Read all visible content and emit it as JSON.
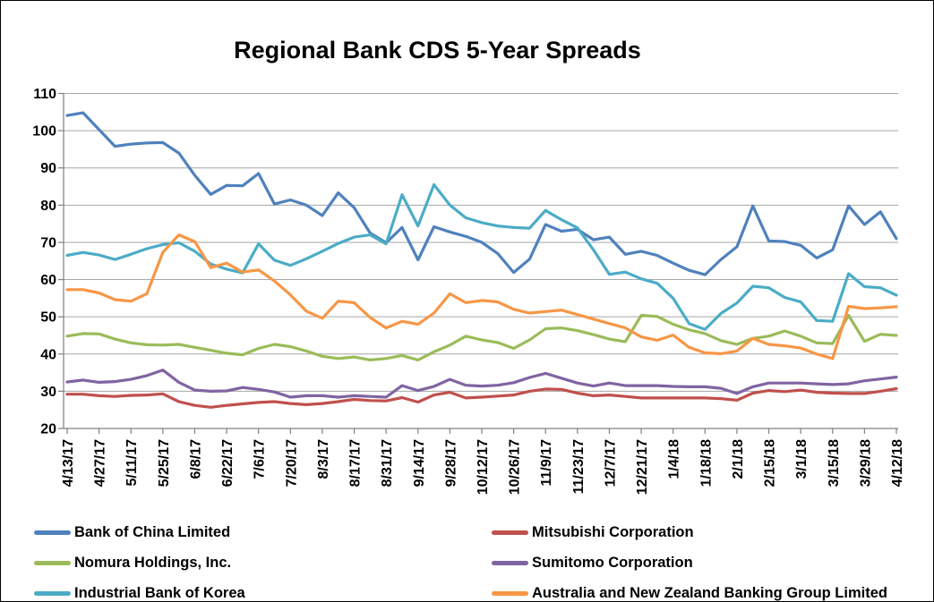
{
  "chart_data": {
    "type": "line",
    "title": "Regional Bank CDS 5-Year Spreads",
    "xlabel": "",
    "ylabel": "",
    "ylim": [
      20,
      110
    ],
    "y_ticks": [
      20,
      30,
      40,
      50,
      60,
      70,
      80,
      90,
      100,
      110
    ],
    "grid": true,
    "legend_position": "bottom-two-columns",
    "x_tick_labels": [
      "4/13/17",
      "4/27/17",
      "5/11/17",
      "5/25/17",
      "6/8/17",
      "6/22/17",
      "7/6/17",
      "7/20/17",
      "8/3/17",
      "8/17/17",
      "8/31/17",
      "9/14/17",
      "9/28/17",
      "10/12/17",
      "10/26/17",
      "11/9/17",
      "11/23/17",
      "12/7/17",
      "12/21/17",
      "1/4/18",
      "1/18/18",
      "2/1/18",
      "2/15/18",
      "3/1/18",
      "3/15/18",
      "3/29/18",
      "4/12/18"
    ],
    "x": [
      "4/13/17",
      "4/20/17",
      "4/27/17",
      "5/4/17",
      "5/11/17",
      "5/18/17",
      "5/25/17",
      "6/1/17",
      "6/8/17",
      "6/15/17",
      "6/22/17",
      "6/29/17",
      "7/6/17",
      "7/13/17",
      "7/20/17",
      "7/27/17",
      "8/3/17",
      "8/10/17",
      "8/17/17",
      "8/24/17",
      "8/31/17",
      "9/7/17",
      "9/14/17",
      "9/21/17",
      "9/28/17",
      "10/5/17",
      "10/12/17",
      "10/19/17",
      "10/26/17",
      "11/2/17",
      "11/9/17",
      "11/16/17",
      "11/23/17",
      "11/30/17",
      "12/7/17",
      "12/14/17",
      "12/21/17",
      "12/28/17",
      "1/4/18",
      "1/11/18",
      "1/18/18",
      "1/25/18",
      "2/1/18",
      "2/8/18",
      "2/15/18",
      "2/22/18",
      "3/1/18",
      "3/8/18",
      "3/15/18",
      "3/22/18",
      "3/29/18",
      "4/5/18",
      "4/12/18"
    ],
    "series": [
      {
        "name": "Bank of China Limited",
        "color": "#4F81BD",
        "values": [
          104.1,
          104.8,
          100.3,
          95.8,
          96.4,
          96.7,
          96.8,
          94.0,
          88.0,
          82.9,
          85.3,
          85.2,
          88.5,
          80.3,
          81.4,
          80.0,
          77.2,
          83.3,
          79.3,
          72.5,
          69.9,
          74.0,
          65.3,
          74.2,
          72.8,
          71.6,
          70.0,
          67.0,
          61.9,
          65.5,
          74.8,
          73.0,
          73.5,
          70.7,
          71.4,
          66.8,
          67.6,
          66.5,
          64.4,
          62.5,
          61.3,
          65.4,
          68.8,
          79.8,
          70.4,
          70.2,
          69.2,
          65.8,
          68.0,
          79.8,
          74.8,
          78.2,
          71.0
        ]
      },
      {
        "name": "Mitsubishi Corporation",
        "color": "#C0504D",
        "values": [
          29.2,
          29.2,
          28.8,
          28.6,
          28.9,
          29.0,
          29.3,
          27.2,
          26.2,
          25.7,
          26.2,
          26.6,
          27.0,
          27.2,
          26.7,
          26.4,
          26.7,
          27.2,
          27.8,
          27.5,
          27.4,
          28.3,
          27.1,
          29.0,
          29.7,
          28.2,
          28.4,
          28.7,
          29.0,
          30.0,
          30.6,
          30.5,
          29.5,
          28.8,
          29.0,
          28.6,
          28.2,
          28.2,
          28.2,
          28.2,
          28.2,
          28.0,
          27.6,
          29.5,
          30.2,
          29.9,
          30.3,
          29.7,
          29.5,
          29.4,
          29.4,
          30.0,
          30.7
        ]
      },
      {
        "name": "Nomura Holdings, Inc.",
        "color": "#9BBB59",
        "values": [
          44.8,
          45.5,
          45.4,
          44.0,
          43.0,
          42.5,
          42.4,
          42.6,
          41.8,
          41.0,
          40.2,
          39.8,
          41.5,
          42.6,
          42.0,
          40.8,
          39.4,
          38.8,
          39.2,
          38.4,
          38.8,
          39.6,
          38.4,
          40.6,
          42.4,
          44.8,
          43.8,
          43.1,
          41.5,
          43.8,
          46.8,
          47.0,
          46.3,
          45.2,
          44.0,
          43.3,
          50.4,
          50.1,
          48.0,
          46.5,
          45.5,
          43.6,
          42.6,
          44.2,
          44.8,
          46.2,
          44.8,
          43.0,
          42.8,
          50.4,
          43.4,
          45.3,
          45.0
        ]
      },
      {
        "name": "Sumitomo Corporation",
        "color": "#8064A2",
        "values": [
          32.5,
          33.0,
          32.4,
          32.6,
          33.2,
          34.2,
          35.7,
          32.4,
          30.3,
          30.0,
          30.1,
          31.0,
          30.5,
          29.8,
          28.4,
          28.8,
          28.8,
          28.4,
          28.8,
          28.6,
          28.4,
          31.5,
          30.2,
          31.3,
          33.2,
          31.6,
          31.4,
          31.6,
          32.3,
          33.7,
          34.8,
          33.5,
          32.2,
          31.4,
          32.2,
          31.5,
          31.5,
          31.5,
          31.3,
          31.2,
          31.2,
          30.8,
          29.4,
          31.2,
          32.2,
          32.2,
          32.2,
          32.0,
          31.8,
          32.0,
          32.8,
          33.3,
          33.8
        ]
      },
      {
        "name": "Industrial Bank of Korea",
        "color": "#4BACC6",
        "values": [
          66.5,
          67.3,
          66.6,
          65.4,
          66.8,
          68.3,
          69.4,
          69.9,
          67.6,
          64.2,
          62.8,
          61.8,
          69.6,
          65.2,
          63.8,
          65.6,
          67.6,
          69.7,
          71.4,
          72.0,
          69.6,
          82.8,
          74.4,
          85.5,
          80.0,
          76.6,
          75.3,
          74.4,
          74.0,
          73.8,
          78.6,
          76.1,
          73.9,
          68.0,
          61.4,
          62.0,
          60.2,
          59.0,
          55.0,
          48.2,
          46.6,
          50.9,
          53.7,
          58.2,
          57.8,
          55.2,
          54.0,
          49.0,
          48.8,
          61.6,
          58.1,
          57.8,
          55.8
        ]
      },
      {
        "name": "Australia and New Zealand Banking Group Limited",
        "color": "#F79646",
        "values": [
          57.3,
          57.3,
          56.4,
          54.6,
          54.2,
          56.2,
          67.3,
          72.0,
          70.2,
          63.2,
          64.4,
          62.0,
          62.6,
          59.6,
          55.9,
          51.5,
          49.6,
          54.2,
          53.8,
          49.8,
          47.0,
          48.8,
          48.0,
          51.0,
          56.2,
          53.8,
          54.4,
          54.0,
          52.0,
          51.0,
          51.4,
          51.8,
          50.6,
          49.4,
          48.2,
          47.0,
          44.6,
          43.7,
          45.1,
          41.8,
          40.3,
          40.1,
          40.8,
          44.2,
          42.6,
          42.2,
          41.6,
          40.0,
          38.8,
          52.8,
          52.2,
          52.4,
          52.7
        ]
      }
    ],
    "colors": {
      "background": "#FFFFFF",
      "frame_border": "#000000",
      "gridline": "#A6A6A6",
      "axis": "#808080",
      "text": "#000000"
    }
  }
}
